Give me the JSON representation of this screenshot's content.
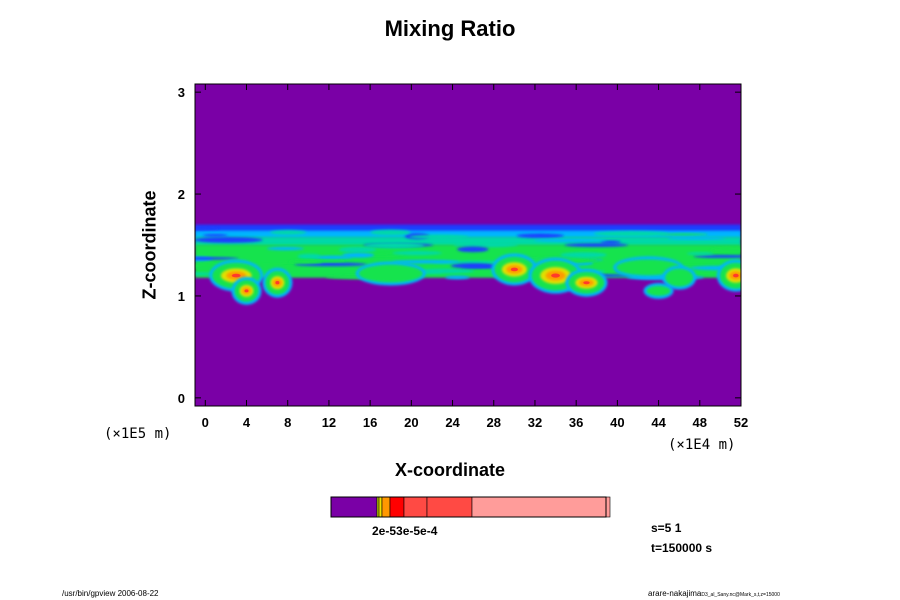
{
  "chart_data": {
    "type": "heatmap",
    "title": "Mixing Ratio",
    "xlabel": "X-coordinate",
    "ylabel": "Z-coordinate",
    "x_multiplier": "(×1E4 m)",
    "y_multiplier": "(×1E5 m)",
    "xlim": [
      -1,
      52
    ],
    "ylim": [
      -0.08,
      3.08
    ],
    "x_ticks": [
      "0",
      "4",
      "8",
      "12",
      "16",
      "20",
      "24",
      "28",
      "32",
      "36",
      "40",
      "44",
      "48",
      "52"
    ],
    "y_ticks": [
      "0",
      "1",
      "2",
      "3"
    ],
    "background_color": "#7a00a6",
    "field": {
      "layer_bottom": 1.1,
      "layer_top": 1.7,
      "description_colors": [
        "#1a3cff",
        "#00b4ff",
        "#00d8a8",
        "#19e34d",
        "#a8e31a",
        "#e0e000",
        "#ff9a00",
        "#ff3a2a"
      ]
    },
    "colorbar": {
      "colors": [
        "#7a00a6",
        "#f0e000",
        "#ff9800",
        "#ff0000",
        "#ff4a44",
        "#ff9c9a"
      ],
      "labels_overlapping": "2e-53e-5e-4"
    }
  },
  "annotations": {
    "step": "s=5 1",
    "time": "t=150000 s",
    "footer_left": "/usr/bin/gpview 2006-08-22",
    "footer_right_user": "arare-nakajima",
    "footer_right_file": "D3_al_Sany.nc@Mark_s,t,z=15000"
  }
}
